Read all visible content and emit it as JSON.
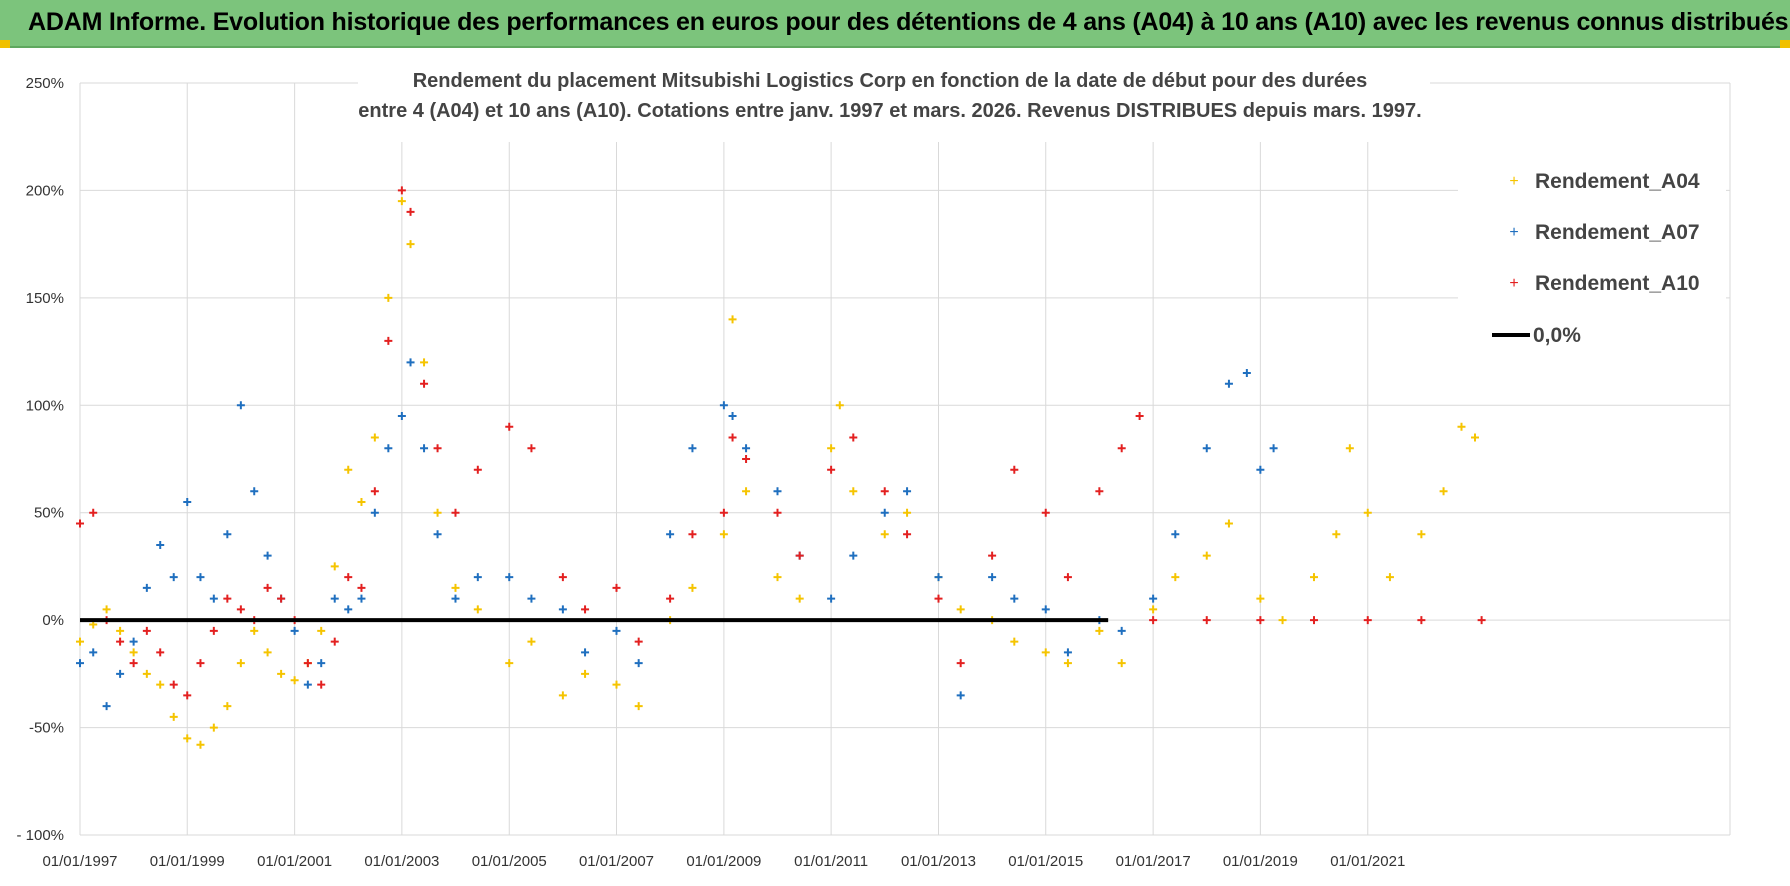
{
  "header": {
    "title": "ADAM Informe. Evolution historique des performances en euros pour des détentions de 4 ans (A04) à 10 ans (A10) avec les revenus connus distribués"
  },
  "chart_data": {
    "type": "scatter",
    "title_line1": "Rendement du placement Mitsubishi Logistics Corp en fonction de la date de début pour des durées",
    "title_line2": "entre 4 (A04) et 10 ans (A10). Cotations entre janv. 1997 et mars. 2026. Revenus DISTRIBUES depuis mars. 1997.",
    "x_tick_labels": [
      "01/01/1997",
      "01/01/1999",
      "01/01/2001",
      "01/01/2003",
      "01/01/2005",
      "01/01/2007",
      "01/01/2009",
      "01/01/2011",
      "01/01/2013",
      "01/01/2015",
      "01/01/2017",
      "01/01/2019",
      "01/01/2021"
    ],
    "x_range": [
      "1997-01-01",
      "2023-02-15"
    ],
    "y_tick_labels": [
      "250%",
      "200%",
      "150%",
      "100%",
      "50%",
      "0%",
      "-50%",
      "- 100%"
    ],
    "y_range": [
      -100,
      250
    ],
    "y_unit": "%",
    "grid": true,
    "legend_position": "top-right",
    "marker": "cross",
    "series": [
      {
        "name": "Rendement_A04",
        "color": "#f5c400",
        "points": [
          [
            "1997-01-01",
            -10
          ],
          [
            "1997-04-01",
            -2
          ],
          [
            "1997-07-01",
            5
          ],
          [
            "1997-10-01",
            -5
          ],
          [
            "1998-01-01",
            -15
          ],
          [
            "1998-04-01",
            -25
          ],
          [
            "1998-07-01",
            -30
          ],
          [
            "1998-10-01",
            -45
          ],
          [
            "1999-01-01",
            -55
          ],
          [
            "1999-04-01",
            -58
          ],
          [
            "1999-07-01",
            -50
          ],
          [
            "1999-10-01",
            -40
          ],
          [
            "2000-01-01",
            -20
          ],
          [
            "2000-04-01",
            -5
          ],
          [
            "2000-07-01",
            -15
          ],
          [
            "2000-10-01",
            -25
          ],
          [
            "2001-01-01",
            -28
          ],
          [
            "2001-04-01",
            -20
          ],
          [
            "2001-07-01",
            -5
          ],
          [
            "2001-10-01",
            25
          ],
          [
            "2002-01-01",
            70
          ],
          [
            "2002-04-01",
            55
          ],
          [
            "2002-07-01",
            85
          ],
          [
            "2002-10-01",
            150
          ],
          [
            "2003-01-01",
            195
          ],
          [
            "2003-03-01",
            175
          ],
          [
            "2003-06-01",
            120
          ],
          [
            "2003-09-01",
            50
          ],
          [
            "2004-01-01",
            15
          ],
          [
            "2004-06-01",
            5
          ],
          [
            "2005-01-01",
            -20
          ],
          [
            "2005-06-01",
            -10
          ],
          [
            "2006-01-01",
            -35
          ],
          [
            "2006-06-01",
            -25
          ],
          [
            "2007-01-01",
            -30
          ],
          [
            "2007-06-01",
            -40
          ],
          [
            "2008-01-01",
            0
          ],
          [
            "2008-06-01",
            15
          ],
          [
            "2009-01-01",
            40
          ],
          [
            "2009-03-01",
            140
          ],
          [
            "2009-06-01",
            60
          ],
          [
            "2010-01-01",
            20
          ],
          [
            "2010-06-01",
            10
          ],
          [
            "2011-01-01",
            80
          ],
          [
            "2011-03-01",
            100
          ],
          [
            "2011-06-01",
            60
          ],
          [
            "2012-01-01",
            40
          ],
          [
            "2012-06-01",
            50
          ],
          [
            "2013-01-01",
            20
          ],
          [
            "2013-06-01",
            5
          ],
          [
            "2014-01-01",
            0
          ],
          [
            "2014-06-01",
            -10
          ],
          [
            "2015-01-01",
            -15
          ],
          [
            "2015-06-01",
            -20
          ],
          [
            "2016-01-01",
            -5
          ],
          [
            "2016-06-01",
            -20
          ],
          [
            "2017-01-01",
            5
          ],
          [
            "2017-06-01",
            20
          ],
          [
            "2018-01-01",
            30
          ],
          [
            "2018-06-01",
            45
          ],
          [
            "2019-01-01",
            10
          ],
          [
            "2019-06-01",
            0
          ],
          [
            "2020-01-01",
            20
          ],
          [
            "2020-06-01",
            40
          ],
          [
            "2020-09-01",
            80
          ],
          [
            "2021-01-01",
            50
          ],
          [
            "2021-06-01",
            20
          ],
          [
            "2022-01-01",
            40
          ],
          [
            "2022-06-01",
            60
          ],
          [
            "2022-10-01",
            90
          ],
          [
            "2023-01-01",
            85
          ]
        ]
      },
      {
        "name": "Rendement_A07",
        "color": "#1f6fbf",
        "points": [
          [
            "1997-01-01",
            -20
          ],
          [
            "1997-04-01",
            -15
          ],
          [
            "1997-07-01",
            -40
          ],
          [
            "1997-10-01",
            -25
          ],
          [
            "1998-01-01",
            -10
          ],
          [
            "1998-04-01",
            15
          ],
          [
            "1998-07-01",
            35
          ],
          [
            "1998-10-01",
            20
          ],
          [
            "1999-01-01",
            55
          ],
          [
            "1999-04-01",
            20
          ],
          [
            "1999-07-01",
            10
          ],
          [
            "1999-10-01",
            40
          ],
          [
            "2000-01-01",
            100
          ],
          [
            "2000-04-01",
            60
          ],
          [
            "2000-07-01",
            30
          ],
          [
            "2000-10-01",
            10
          ],
          [
            "2001-01-01",
            -5
          ],
          [
            "2001-04-01",
            -30
          ],
          [
            "2001-07-01",
            -20
          ],
          [
            "2001-10-01",
            10
          ],
          [
            "2002-01-01",
            5
          ],
          [
            "2002-04-01",
            10
          ],
          [
            "2002-07-01",
            50
          ],
          [
            "2002-10-01",
            80
          ],
          [
            "2003-01-01",
            95
          ],
          [
            "2003-03-01",
            120
          ],
          [
            "2003-06-01",
            80
          ],
          [
            "2003-09-01",
            40
          ],
          [
            "2004-01-01",
            10
          ],
          [
            "2004-06-01",
            20
          ],
          [
            "2005-01-01",
            20
          ],
          [
            "2005-06-01",
            10
          ],
          [
            "2006-01-01",
            5
          ],
          [
            "2006-06-01",
            -15
          ],
          [
            "2007-01-01",
            -5
          ],
          [
            "2007-06-01",
            -20
          ],
          [
            "2008-01-01",
            40
          ],
          [
            "2008-06-01",
            80
          ],
          [
            "2009-01-01",
            100
          ],
          [
            "2009-03-01",
            95
          ],
          [
            "2009-06-01",
            80
          ],
          [
            "2010-01-01",
            60
          ],
          [
            "2010-06-01",
            30
          ],
          [
            "2011-01-01",
            10
          ],
          [
            "2011-06-01",
            30
          ],
          [
            "2012-01-01",
            50
          ],
          [
            "2012-06-01",
            60
          ],
          [
            "2013-01-01",
            20
          ],
          [
            "2013-06-01",
            -35
          ],
          [
            "2014-01-01",
            20
          ],
          [
            "2014-06-01",
            10
          ],
          [
            "2015-01-01",
            5
          ],
          [
            "2015-06-01",
            -15
          ],
          [
            "2016-01-01",
            0
          ],
          [
            "2016-06-01",
            -5
          ],
          [
            "2017-01-01",
            10
          ],
          [
            "2017-06-01",
            40
          ],
          [
            "2018-01-01",
            80
          ],
          [
            "2018-06-01",
            110
          ],
          [
            "2018-10-01",
            115
          ],
          [
            "2019-01-01",
            70
          ],
          [
            "2019-04-01",
            80
          ]
        ]
      },
      {
        "name": "Rendement_A10",
        "color": "#e32020",
        "points": [
          [
            "1997-01-01",
            45
          ],
          [
            "1997-04-01",
            50
          ],
          [
            "1997-07-01",
            0
          ],
          [
            "1997-10-01",
            -10
          ],
          [
            "1998-01-01",
            -20
          ],
          [
            "1998-04-01",
            -5
          ],
          [
            "1998-07-01",
            -15
          ],
          [
            "1998-10-01",
            -30
          ],
          [
            "1999-01-01",
            -35
          ],
          [
            "1999-04-01",
            -20
          ],
          [
            "1999-07-01",
            -5
          ],
          [
            "1999-10-01",
            10
          ],
          [
            "2000-01-01",
            5
          ],
          [
            "2000-04-01",
            0
          ],
          [
            "2000-07-01",
            15
          ],
          [
            "2000-10-01",
            10
          ],
          [
            "2001-01-01",
            0
          ],
          [
            "2001-04-01",
            -20
          ],
          [
            "2001-07-01",
            -30
          ],
          [
            "2001-10-01",
            -10
          ],
          [
            "2002-01-01",
            20
          ],
          [
            "2002-04-01",
            15
          ],
          [
            "2002-07-01",
            60
          ],
          [
            "2002-10-01",
            130
          ],
          [
            "2003-01-01",
            200
          ],
          [
            "2003-03-01",
            190
          ],
          [
            "2003-06-01",
            110
          ],
          [
            "2003-09-01",
            80
          ],
          [
            "2004-01-01",
            50
          ],
          [
            "2004-06-01",
            70
          ],
          [
            "2005-01-01",
            90
          ],
          [
            "2005-06-01",
            80
          ],
          [
            "2006-01-01",
            20
          ],
          [
            "2006-06-01",
            5
          ],
          [
            "2007-01-01",
            15
          ],
          [
            "2007-06-01",
            -10
          ],
          [
            "2008-01-01",
            10
          ],
          [
            "2008-06-01",
            40
          ],
          [
            "2009-01-01",
            50
          ],
          [
            "2009-03-01",
            85
          ],
          [
            "2009-06-01",
            75
          ],
          [
            "2010-01-01",
            50
          ],
          [
            "2010-06-01",
            30
          ],
          [
            "2011-01-01",
            70
          ],
          [
            "2011-06-01",
            85
          ],
          [
            "2012-01-01",
            60
          ],
          [
            "2012-06-01",
            40
          ],
          [
            "2013-01-01",
            10
          ],
          [
            "2013-06-01",
            -20
          ],
          [
            "2014-01-01",
            30
          ],
          [
            "2014-06-01",
            70
          ],
          [
            "2015-01-01",
            50
          ],
          [
            "2015-06-01",
            20
          ],
          [
            "2016-01-01",
            60
          ],
          [
            "2016-06-01",
            80
          ],
          [
            "2016-10-01",
            95
          ],
          [
            "2017-01-01",
            0
          ],
          [
            "2018-01-01",
            0
          ],
          [
            "2019-01-01",
            0
          ],
          [
            "2020-01-01",
            0
          ],
          [
            "2021-01-01",
            0
          ],
          [
            "2022-01-01",
            0
          ],
          [
            "2023-02-15",
            0
          ]
        ]
      },
      {
        "name": "0,0%",
        "color": "#000000",
        "points": [
          [
            "1997-01-01",
            0
          ],
          [
            "2016-03-01",
            0
          ]
        ]
      }
    ]
  }
}
